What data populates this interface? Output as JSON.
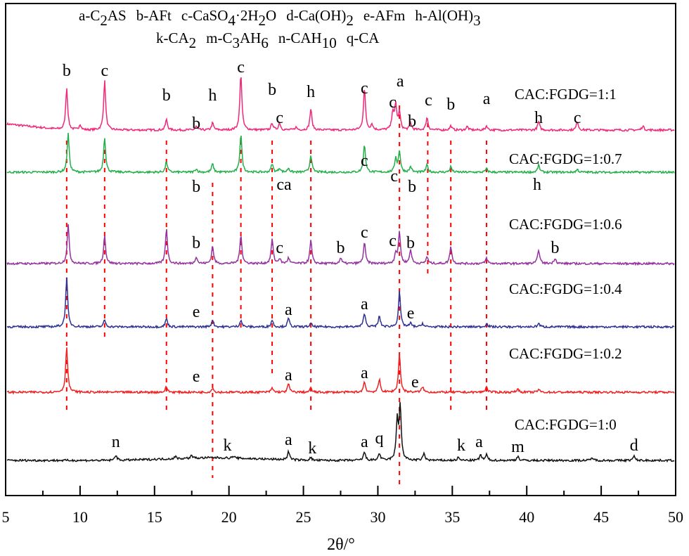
{
  "chart_data": {
    "type": "line",
    "title": "",
    "xlabel": "2θ/°",
    "ylabel": "",
    "xlim": [
      5,
      50
    ],
    "xticks": [
      5,
      10,
      15,
      20,
      25,
      30,
      35,
      40,
      45,
      50
    ],
    "grid": false,
    "legend_rows": [
      [
        [
          {
            "t": "a-C"
          },
          {
            "s": "2"
          },
          {
            "t": "AS"
          }
        ],
        [
          {
            "t": "b-AFt"
          }
        ],
        [
          {
            "t": "c-CaSO"
          },
          {
            "s": "4"
          },
          {
            "t": "·2H"
          },
          {
            "s": "2"
          },
          {
            "t": "O"
          }
        ],
        [
          {
            "t": "d-Ca(OH)"
          },
          {
            "s": "2"
          }
        ],
        [
          {
            "t": "e-AFm"
          }
        ],
        [
          {
            "t": "h-Al(OH)"
          },
          {
            "s": "3"
          }
        ]
      ],
      [
        [
          {
            "t": "k-CA"
          },
          {
            "s": "2"
          }
        ],
        [
          {
            "t": "m-C"
          },
          {
            "s": "3"
          },
          {
            "t": "AH"
          },
          {
            "s": "6"
          }
        ],
        [
          {
            "t": "n-CAH"
          },
          {
            "s": "10"
          }
        ],
        [
          {
            "t": "q-CA"
          }
        ]
      ]
    ],
    "reference_lines_2theta": [
      9.1,
      11.65,
      15.8,
      18.9,
      20.8,
      22.9,
      25.5,
      31.45,
      33.35,
      34.9,
      37.3
    ],
    "reference_line_color": "#ff0000",
    "series": [
      {
        "name": "CAC:FGDG=1:1",
        "color": "#f0287a",
        "peaks": [
          [
            9.1,
            60
          ],
          [
            10.0,
            8
          ],
          [
            11.65,
            70
          ],
          [
            15.8,
            15
          ],
          [
            17.8,
            5
          ],
          [
            18.9,
            10
          ],
          [
            20.8,
            80
          ],
          [
            22.9,
            10
          ],
          [
            23.4,
            10
          ],
          [
            24.5,
            4
          ],
          [
            25.5,
            30
          ],
          [
            29.1,
            60
          ],
          [
            29.6,
            8
          ],
          [
            31.0,
            25
          ],
          [
            31.2,
            35
          ],
          [
            31.45,
            25
          ],
          [
            32.2,
            10
          ],
          [
            33.3,
            18
          ],
          [
            34.9,
            6
          ],
          [
            36.0,
            5
          ],
          [
            37.3,
            6
          ],
          [
            40.8,
            12
          ],
          [
            43.4,
            12
          ],
          [
            47.8,
            6
          ]
        ],
        "annotations": [
          [
            "b",
            9.1,
            85
          ],
          [
            "c",
            11.65,
            85
          ],
          [
            "b",
            15.8,
            50
          ],
          [
            "b",
            17.8,
            10
          ],
          [
            "h",
            18.9,
            50
          ],
          [
            "c",
            20.8,
            90
          ],
          [
            "b",
            22.9,
            58
          ],
          [
            "c",
            23.4,
            18
          ],
          [
            "h",
            25.5,
            55
          ],
          [
            "c",
            29.1,
            60
          ],
          [
            "a",
            31.5,
            70
          ],
          [
            "c",
            31.0,
            40
          ],
          [
            "b",
            32.3,
            13
          ],
          [
            "c",
            33.4,
            43
          ],
          [
            "b",
            34.9,
            37
          ],
          [
            "a",
            37.3,
            45
          ],
          [
            "h",
            40.8,
            18
          ],
          [
            "c",
            43.4,
            18
          ]
        ]
      },
      {
        "name": "CAC:FGDG=1:0.7",
        "color": "#22b04b",
        "peaks": [
          [
            9.2,
            55
          ],
          [
            11.65,
            50
          ],
          [
            15.8,
            15
          ],
          [
            17.8,
            5
          ],
          [
            18.9,
            12
          ],
          [
            20.8,
            55
          ],
          [
            22.9,
            12
          ],
          [
            23.4,
            6
          ],
          [
            24.0,
            6
          ],
          [
            25.5,
            25
          ],
          [
            29.1,
            40
          ],
          [
            31.2,
            20
          ],
          [
            31.45,
            30
          ],
          [
            32.2,
            8
          ],
          [
            33.3,
            10
          ],
          [
            34.9,
            8
          ],
          [
            37.3,
            5
          ],
          [
            40.8,
            10
          ],
          [
            43.4,
            4
          ]
        ],
        "annotations": [
          [
            "b",
            17.8,
            -20
          ],
          [
            "ca",
            23.7,
            -17
          ],
          [
            "c",
            29.1,
            17
          ],
          [
            "c",
            31.1,
            -5
          ],
          [
            "b",
            32.3,
            -20
          ],
          [
            "h",
            40.7,
            -17
          ]
        ]
      },
      {
        "name": "CAC:FGDG=1:0.6",
        "color": "#9432a0",
        "peaks": [
          [
            9.2,
            55
          ],
          [
            11.65,
            40
          ],
          [
            15.8,
            50
          ],
          [
            17.8,
            10
          ],
          [
            18.9,
            25
          ],
          [
            20.8,
            42
          ],
          [
            22.9,
            35
          ],
          [
            23.4,
            7
          ],
          [
            24.0,
            8
          ],
          [
            25.5,
            33
          ],
          [
            27.5,
            8
          ],
          [
            29.1,
            30
          ],
          [
            31.2,
            15
          ],
          [
            31.45,
            45
          ],
          [
            32.2,
            20
          ],
          [
            33.3,
            10
          ],
          [
            34.9,
            25
          ],
          [
            37.3,
            8
          ],
          [
            40.8,
            20
          ],
          [
            41.9,
            8
          ]
        ],
        "annotations": [
          [
            "b",
            17.8,
            30
          ],
          [
            "c",
            23.4,
            23
          ],
          [
            "b",
            27.5,
            23
          ],
          [
            "c",
            29.1,
            45
          ],
          [
            "c",
            31.0,
            33
          ],
          [
            "b",
            32.2,
            30
          ],
          [
            "b",
            41.9,
            23
          ]
        ]
      },
      {
        "name": "CAC:FGDG=1:0.4",
        "color": "#2e3192",
        "peaks": [
          [
            9.1,
            70
          ],
          [
            11.65,
            10
          ],
          [
            15.8,
            12
          ],
          [
            18.9,
            10
          ],
          [
            20.8,
            10
          ],
          [
            22.9,
            10
          ],
          [
            24.0,
            12
          ],
          [
            25.5,
            5
          ],
          [
            29.1,
            20
          ],
          [
            30.1,
            15
          ],
          [
            31.45,
            50
          ],
          [
            32.2,
            5
          ],
          [
            33.0,
            5
          ],
          [
            37.3,
            5
          ],
          [
            40.8,
            5
          ]
        ],
        "annotations": [
          [
            "e",
            17.8,
            22
          ],
          [
            "a",
            24.0,
            25
          ],
          [
            "a",
            29.1,
            33
          ],
          [
            "e",
            32.2,
            20
          ]
        ]
      },
      {
        "name": "CAC:FGDG=1:0.2",
        "color": "#ee2222",
        "peaks": [
          [
            9.1,
            65
          ],
          [
            15.8,
            8
          ],
          [
            18.9,
            6
          ],
          [
            22.9,
            6
          ],
          [
            24.0,
            12
          ],
          [
            25.5,
            6
          ],
          [
            29.1,
            15
          ],
          [
            30.1,
            18
          ],
          [
            31.45,
            55
          ],
          [
            33.0,
            8
          ],
          [
            37.3,
            8
          ],
          [
            39.4,
            5
          ],
          [
            40.8,
            4
          ]
        ],
        "annotations": [
          [
            "e",
            17.8,
            23
          ],
          [
            "a",
            24.0,
            25
          ],
          [
            "a",
            29.1,
            28
          ],
          [
            "e",
            32.5,
            15
          ]
        ]
      },
      {
        "name": "CAC:FGDG=1:0",
        "color": "#111111",
        "peaks": [
          [
            12.4,
            8
          ],
          [
            16.4,
            3
          ],
          [
            17.5,
            4
          ],
          [
            20.3,
            3
          ],
          [
            24.0,
            12
          ],
          [
            25.5,
            4
          ],
          [
            29.1,
            12
          ],
          [
            30.1,
            10
          ],
          [
            31.3,
            55
          ],
          [
            31.5,
            77
          ],
          [
            33.1,
            10
          ],
          [
            35.4,
            4
          ],
          [
            36.9,
            8
          ],
          [
            37.3,
            8
          ],
          [
            39.4,
            6
          ],
          [
            44.4,
            4
          ],
          [
            47.2,
            6
          ]
        ],
        "annotations": [
          [
            "n",
            12.4,
            27
          ],
          [
            "k",
            19.9,
            22
          ],
          [
            "a",
            24.0,
            30
          ],
          [
            "k",
            25.6,
            18
          ],
          [
            "a",
            29.1,
            27
          ],
          [
            "q",
            30.1,
            32
          ],
          [
            "k",
            35.6,
            22
          ],
          [
            "a",
            36.8,
            27
          ],
          [
            "m",
            39.4,
            20
          ],
          [
            "d",
            47.2,
            22
          ]
        ]
      }
    ]
  }
}
